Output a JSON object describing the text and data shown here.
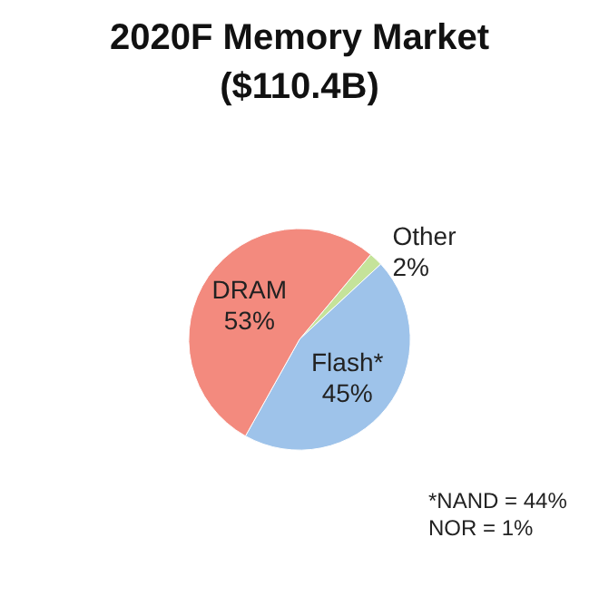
{
  "chart_data": {
    "type": "pie",
    "title": "2020F Memory Market",
    "subtitle": "($110.4B)",
    "categories": [
      "Other",
      "Flash*",
      "DRAM"
    ],
    "values": [
      2,
      45,
      53
    ],
    "colors": [
      "#c5e39a",
      "#9ec3ea",
      "#f38a7e"
    ],
    "value_labels": [
      "2%",
      "45%",
      "53%"
    ],
    "annotations": [
      "*NAND = 44%",
      "NOR = 1%"
    ],
    "legend": false
  }
}
